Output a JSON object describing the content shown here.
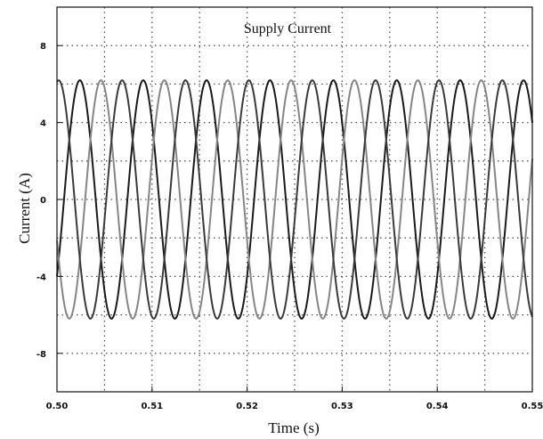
{
  "chart_data": {
    "type": "line",
    "title": "Supply Current",
    "xlabel": "Time (s)",
    "ylabel": "Current (A)",
    "xlim": [
      0.5,
      0.55
    ],
    "ylim": [
      -10,
      10
    ],
    "x_ticks": [
      0.5,
      0.51,
      0.52,
      0.53,
      0.54,
      0.55
    ],
    "x_tick_labels": [
      "0.50",
      "0.51",
      "0.52",
      "0.53",
      "0.54",
      "0.55"
    ],
    "y_ticks": [
      8,
      4,
      0,
      -4,
      -8
    ],
    "y_tick_labels": [
      "8",
      "4",
      "0",
      "-4",
      "-8"
    ],
    "grid": true,
    "legend": "none",
    "series": [
      {
        "color": "#1a1a1a",
        "amplitude": 6.2,
        "phase_deg": -40
      },
      {
        "color": "#858585",
        "amplitude": 6.2,
        "phase_deg": -160
      },
      {
        "color": "#3a3a3a",
        "amplitude": 6.2,
        "phase_deg": 80
      }
    ],
    "frequency_hz": 150,
    "x": [
      0.5,
      0.502,
      0.504,
      0.506,
      0.508,
      0.51,
      0.512,
      0.514,
      0.516,
      0.518,
      0.52,
      0.522,
      0.524,
      0.526,
      0.528,
      0.53,
      0.532,
      0.534,
      0.536,
      0.538,
      0.54,
      0.542,
      0.544,
      0.546,
      0.548,
      0.55
    ]
  }
}
